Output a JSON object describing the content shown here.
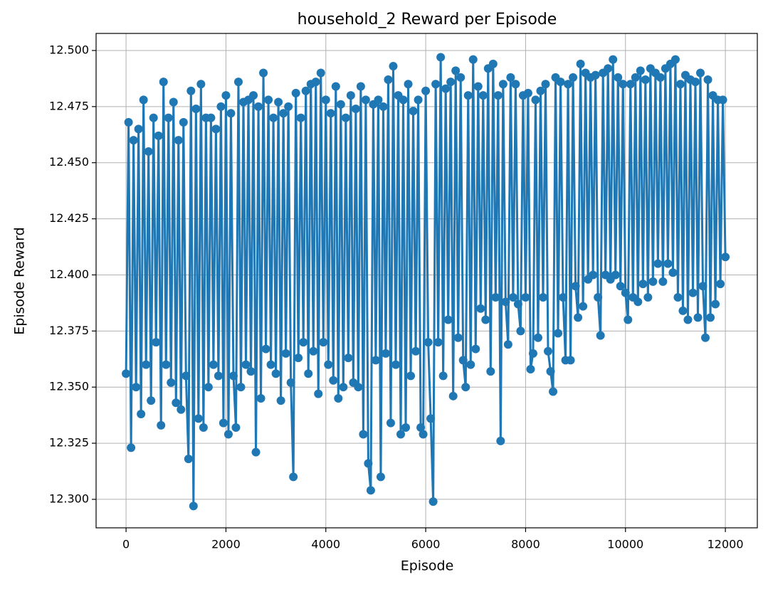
{
  "chart_data": {
    "type": "line",
    "title": "household_2 Reward per Episode",
    "xlabel": "Episode",
    "ylabel": "Episode Reward",
    "x": [
      0,
      50,
      100,
      150,
      200,
      250,
      300,
      350,
      400,
      450,
      500,
      550,
      600,
      650,
      700,
      750,
      800,
      850,
      900,
      950,
      1000,
      1050,
      1100,
      1150,
      1200,
      1250,
      1300,
      1350,
      1400,
      1450,
      1500,
      1550,
      1600,
      1650,
      1700,
      1750,
      1800,
      1850,
      1900,
      1950,
      2000,
      2050,
      2100,
      2150,
      2200,
      2250,
      2300,
      2350,
      2400,
      2450,
      2500,
      2550,
      2600,
      2650,
      2700,
      2750,
      2800,
      2850,
      2900,
      2950,
      3000,
      3050,
      3100,
      3150,
      3200,
      3250,
      3300,
      3350,
      3400,
      3450,
      3500,
      3550,
      3600,
      3650,
      3700,
      3750,
      3800,
      3850,
      3900,
      3950,
      4000,
      4050,
      4100,
      4150,
      4200,
      4250,
      4300,
      4350,
      4400,
      4450,
      4500,
      4550,
      4600,
      4650,
      4700,
      4750,
      4800,
      4850,
      4900,
      4950,
      5000,
      5050,
      5100,
      5150,
      5200,
      5250,
      5300,
      5350,
      5400,
      5450,
      5500,
      5550,
      5600,
      5650,
      5700,
      5750,
      5800,
      5850,
      5900,
      5950,
      6000,
      6050,
      6100,
      6150,
      6200,
      6250,
      6300,
      6350,
      6400,
      6450,
      6500,
      6550,
      6600,
      6650,
      6700,
      6750,
      6800,
      6850,
      6900,
      6950,
      7000,
      7050,
      7100,
      7150,
      7200,
      7250,
      7300,
      7350,
      7400,
      7450,
      7500,
      7550,
      7600,
      7650,
      7700,
      7750,
      7800,
      7850,
      7900,
      7950,
      8000,
      8050,
      8100,
      8150,
      8200,
      8250,
      8300,
      8350,
      8400,
      8450,
      8500,
      8550,
      8600,
      8650,
      8700,
      8750,
      8800,
      8850,
      8900,
      8950,
      9000,
      9050,
      9100,
      9150,
      9200,
      9250,
      9300,
      9350,
      9400,
      9450,
      9500,
      9550,
      9600,
      9650,
      9700,
      9750,
      9800,
      9850,
      9900,
      9950,
      10000,
      10050,
      10100,
      10150,
      10200,
      10250,
      10300,
      10350,
      10400,
      10450,
      10500,
      10550,
      10600,
      10650,
      10700,
      10750,
      10800,
      10850,
      10900,
      10950,
      11000,
      11050,
      11100,
      11150,
      11200,
      11250,
      11300,
      11350,
      11400,
      11450,
      11500,
      11550,
      11600,
      11650,
      11700,
      11750,
      11800,
      11850,
      11900,
      11950,
      12000
    ],
    "series": [
      {
        "color": "#1f77b4",
        "values": [
          12.356,
          12.468,
          12.323,
          12.46,
          12.35,
          12.465,
          12.338,
          12.478,
          12.36,
          12.455,
          12.344,
          12.47,
          12.37,
          12.462,
          12.333,
          12.486,
          12.36,
          12.47,
          12.352,
          12.477,
          12.343,
          12.46,
          12.34,
          12.468,
          12.355,
          12.318,
          12.482,
          12.297,
          12.474,
          12.336,
          12.485,
          12.332,
          12.47,
          12.35,
          12.47,
          12.36,
          12.465,
          12.355,
          12.475,
          12.334,
          12.48,
          12.329,
          12.472,
          12.355,
          12.332,
          12.486,
          12.35,
          12.477,
          12.36,
          12.478,
          12.357,
          12.48,
          12.321,
          12.475,
          12.345,
          12.49,
          12.367,
          12.478,
          12.36,
          12.47,
          12.356,
          12.477,
          12.344,
          12.472,
          12.365,
          12.475,
          12.352,
          12.31,
          12.481,
          12.363,
          12.47,
          12.37,
          12.482,
          12.356,
          12.485,
          12.366,
          12.486,
          12.347,
          12.49,
          12.37,
          12.478,
          12.36,
          12.472,
          12.353,
          12.484,
          12.345,
          12.476,
          12.35,
          12.47,
          12.363,
          12.48,
          12.352,
          12.474,
          12.35,
          12.484,
          12.329,
          12.478,
          12.316,
          12.304,
          12.476,
          12.362,
          12.478,
          12.31,
          12.475,
          12.365,
          12.487,
          12.334,
          12.493,
          12.36,
          12.48,
          12.329,
          12.478,
          12.332,
          12.485,
          12.355,
          12.473,
          12.366,
          12.478,
          12.332,
          12.329,
          12.482,
          12.37,
          12.336,
          12.299,
          12.485,
          12.37,
          12.497,
          12.355,
          12.483,
          12.38,
          12.486,
          12.346,
          12.491,
          12.372,
          12.488,
          12.362,
          12.35,
          12.48,
          12.36,
          12.496,
          12.367,
          12.484,
          12.385,
          12.48,
          12.38,
          12.492,
          12.357,
          12.494,
          12.39,
          12.48,
          12.326,
          12.485,
          12.388,
          12.369,
          12.488,
          12.39,
          12.485,
          12.387,
          12.375,
          12.48,
          12.39,
          12.481,
          12.358,
          12.365,
          12.478,
          12.372,
          12.482,
          12.39,
          12.485,
          12.366,
          12.357,
          12.348,
          12.488,
          12.374,
          12.486,
          12.39,
          12.362,
          12.485,
          12.362,
          12.488,
          12.395,
          12.381,
          12.494,
          12.386,
          12.49,
          12.398,
          12.488,
          12.4,
          12.489,
          12.39,
          12.373,
          12.49,
          12.4,
          12.492,
          12.398,
          12.496,
          12.4,
          12.488,
          12.395,
          12.485,
          12.392,
          12.38,
          12.485,
          12.39,
          12.488,
          12.388,
          12.491,
          12.396,
          12.487,
          12.39,
          12.492,
          12.397,
          12.49,
          12.405,
          12.488,
          12.397,
          12.492,
          12.405,
          12.494,
          12.401,
          12.496,
          12.39,
          12.485,
          12.384,
          12.489,
          12.38,
          12.487,
          12.392,
          12.486,
          12.381,
          12.49,
          12.395,
          12.372,
          12.487,
          12.381,
          12.48,
          12.387,
          12.478,
          12.396,
          12.478,
          12.408
        ]
      }
    ],
    "xlim": [
      -600,
      12640
    ],
    "xticks": [
      0,
      2000,
      4000,
      6000,
      8000,
      10000,
      12000
    ],
    "ylim": [
      12.2873,
      12.5076
    ],
    "yticks": [
      {
        "value": 12.3,
        "label": "12.300"
      },
      {
        "value": 12.325,
        "label": "12.325"
      },
      {
        "value": 12.35,
        "label": "12.350"
      },
      {
        "value": 12.375,
        "label": "12.375"
      },
      {
        "value": 12.4,
        "label": "12.400"
      },
      {
        "value": 12.425,
        "label": "12.425"
      },
      {
        "value": 12.45,
        "label": "12.450"
      },
      {
        "value": 12.475,
        "label": "12.475"
      },
      {
        "value": 12.5,
        "label": "12.500"
      }
    ],
    "grid": true,
    "marker": true
  }
}
